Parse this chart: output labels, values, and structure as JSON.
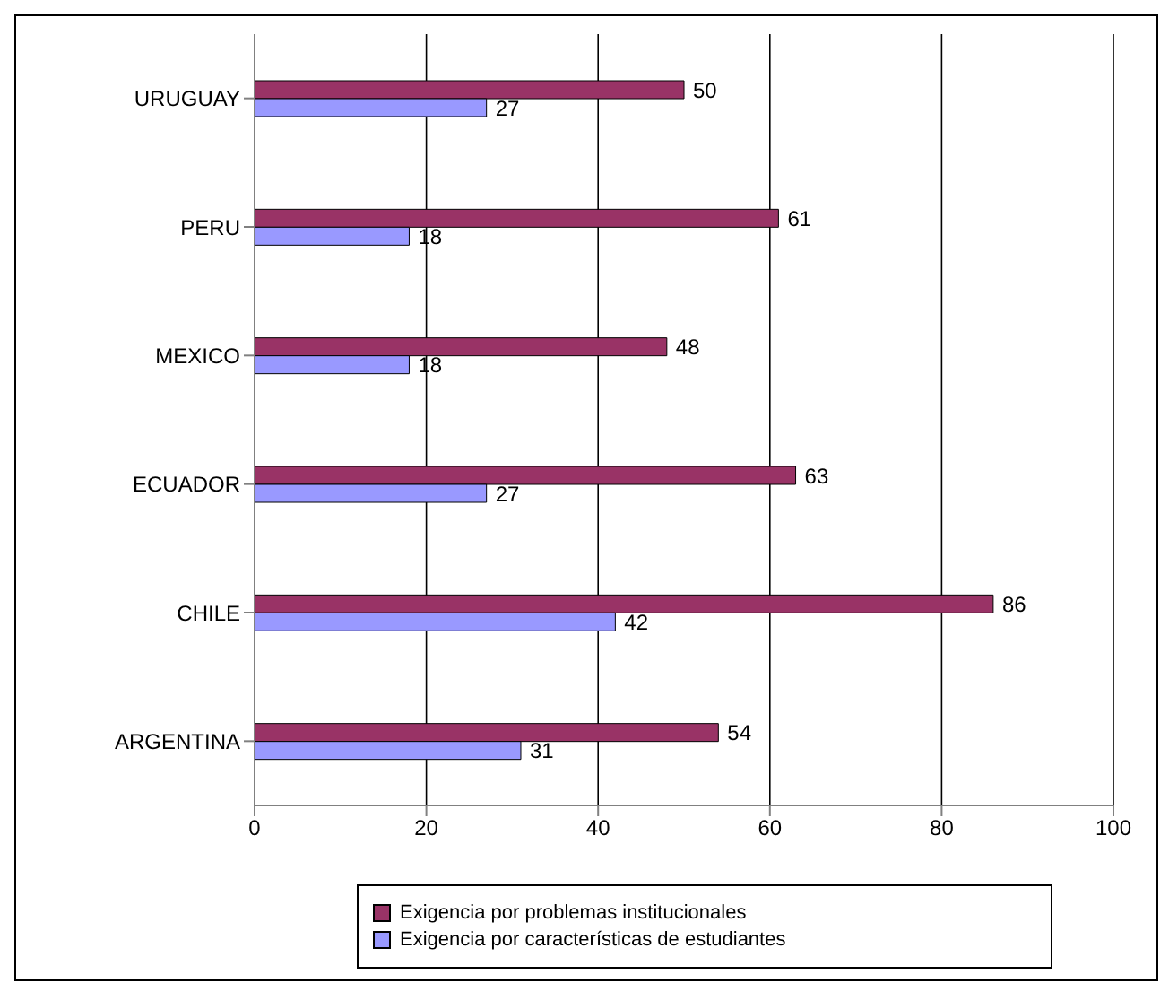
{
  "chart_data": {
    "type": "bar",
    "orientation": "horizontal",
    "categories": [
      "URUGUAY",
      "PERU",
      "MEXICO",
      "ECUADOR",
      "CHILE",
      "ARGENTINA"
    ],
    "series": [
      {
        "name": "Exigencia por problemas institucionales",
        "color": "#993366",
        "values": [
          50,
          61,
          48,
          63,
          86,
          54
        ]
      },
      {
        "name": "Exigencia por características de estudiantes",
        "color": "#9999ff",
        "values": [
          27,
          18,
          18,
          27,
          42,
          31
        ]
      }
    ],
    "xlim": [
      0,
      100
    ],
    "xticks": [
      0,
      20,
      40,
      60,
      80,
      100
    ],
    "grid": "x",
    "legend": "bottom",
    "data_labels": true
  }
}
